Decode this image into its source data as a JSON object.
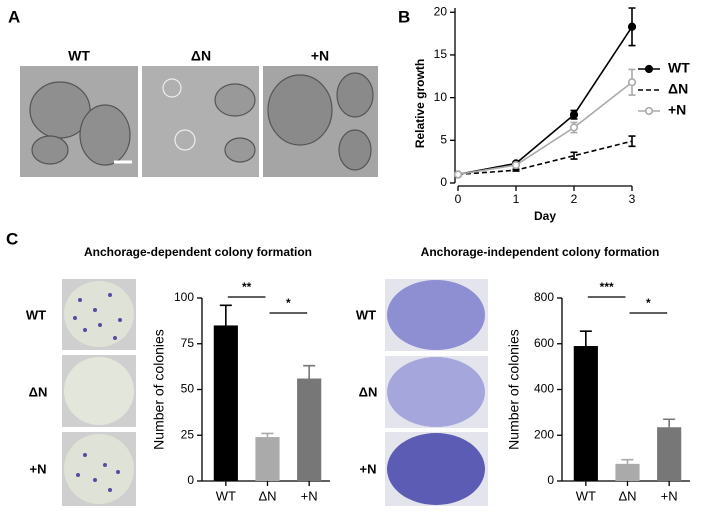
{
  "panel_labels": [
    "A",
    "B",
    "C"
  ],
  "image_labels": {
    "growth": [
      "WT",
      "ΔN",
      "+N"
    ],
    "dependent": [
      "WT",
      "ΔN",
      "+N"
    ],
    "independent": [
      "WT",
      "ΔN",
      "+N"
    ]
  },
  "chart_data": [
    {
      "type": "line",
      "x": [
        0,
        1,
        2,
        3
      ],
      "xlim": [
        0,
        3
      ],
      "xticks": [
        0,
        1,
        2,
        3
      ],
      "ylim": [
        0,
        20.5
      ],
      "yticks": [
        0,
        5,
        10,
        15,
        20
      ],
      "xlabel": "Day",
      "ylabel": "Relative growth",
      "series": [
        {
          "name": "WT",
          "color": "#000000",
          "dashed": false,
          "marker": "filled",
          "values": [
            1,
            2.3,
            8,
            18.3
          ],
          "errors": [
            0.1,
            0.2,
            0.5,
            2.2
          ]
        },
        {
          "name": "ΔN",
          "color": "#000000",
          "dashed": true,
          "marker": "none",
          "values": [
            1,
            1.5,
            3.2,
            4.9
          ],
          "errors": [
            0.1,
            0.1,
            0.4,
            0.6
          ]
        },
        {
          "name": "+N",
          "color": "#aaaaaa",
          "dashed": false,
          "marker": "open",
          "values": [
            1,
            2.1,
            6.5,
            11.8
          ],
          "errors": [
            0.1,
            0.2,
            0.6,
            1.5
          ]
        }
      ]
    },
    {
      "type": "bar",
      "title": "Anchorage-dependent colony formation",
      "categories": [
        "WT",
        "ΔN",
        "+N"
      ],
      "values": [
        85,
        24,
        56
      ],
      "errors": [
        11,
        2,
        7
      ],
      "colors": [
        "#000000",
        "#aaaaaa",
        "#777777"
      ],
      "ylim": [
        0,
        100
      ],
      "yticks": [
        0,
        25,
        50,
        75,
        100
      ],
      "ylabel": "Number of colonies",
      "annotations": [
        "**",
        "*"
      ]
    },
    {
      "type": "bar",
      "title": "Anchorage-independent colony formation",
      "categories": [
        "WT",
        "ΔN",
        "+N"
      ],
      "values": [
        590,
        75,
        235
      ],
      "errors": [
        65,
        18,
        35
      ],
      "colors": [
        "#000000",
        "#aaaaaa",
        "#777777"
      ],
      "ylim": [
        0,
        800
      ],
      "yticks": [
        0,
        200,
        400,
        600,
        800
      ],
      "ylabel": "Number of colonies",
      "annotations": [
        "***",
        "*"
      ]
    }
  ]
}
